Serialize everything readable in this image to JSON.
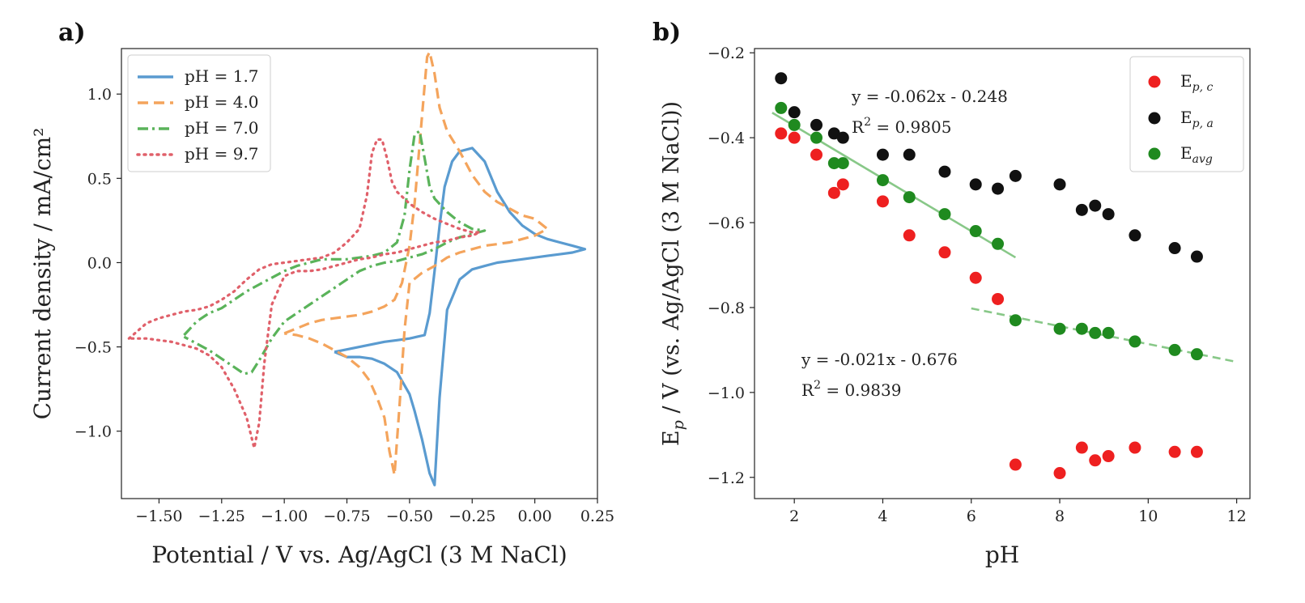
{
  "chart_data": [
    {
      "panel": "a)",
      "type": "line",
      "title": "",
      "xlabel": "Potential / V vs. Ag/AgCl (3 M NaCl)",
      "ylabel": "Current density / mA/cm²",
      "xlim": [
        -1.65,
        0.25
      ],
      "ylim": [
        -1.4,
        1.27
      ],
      "xticks": [
        -1.5,
        -1.25,
        -1.0,
        -0.75,
        -0.5,
        -0.25,
        0.0,
        0.25
      ],
      "xtick_labels": [
        "−1.50",
        "−1.25",
        "−1.00",
        "−0.75",
        "−0.50",
        "−0.25",
        "0.00",
        "0.25"
      ],
      "yticks": [
        -1.0,
        -0.5,
        0.0,
        0.5,
        1.0
      ],
      "ytick_labels": [
        "−1.0",
        "−0.5",
        "0.0",
        "0.5",
        "1.0"
      ],
      "legend_position": "top-left",
      "series": [
        {
          "name": "pH = 1.7",
          "color": "#5a9bd0",
          "dash": "solid",
          "x": [
            -0.8,
            -0.7,
            -0.6,
            -0.55,
            -0.5,
            -0.47,
            -0.44,
            -0.42,
            -0.4,
            -0.38,
            -0.36,
            -0.33,
            -0.3,
            -0.25,
            -0.2,
            -0.15,
            -0.1,
            -0.05,
            0.0,
            0.05,
            0.1,
            0.15,
            0.2,
            0.15,
            0.1,
            0.05,
            0.0,
            -0.05,
            -0.1,
            -0.15,
            -0.2,
            -0.25,
            -0.3,
            -0.35,
            -0.38,
            -0.4,
            -0.42,
            -0.45,
            -0.48,
            -0.5,
            -0.55,
            -0.6,
            -0.65,
            -0.7,
            -0.75,
            -0.8
          ],
          "y": [
            -0.53,
            -0.5,
            -0.47,
            -0.46,
            -0.45,
            -0.44,
            -0.43,
            -0.3,
            -0.05,
            0.22,
            0.45,
            0.6,
            0.66,
            0.68,
            0.6,
            0.42,
            0.3,
            0.22,
            0.17,
            0.14,
            0.12,
            0.1,
            0.08,
            0.06,
            0.05,
            0.04,
            0.03,
            0.02,
            0.01,
            0.0,
            -0.02,
            -0.04,
            -0.1,
            -0.28,
            -0.8,
            -1.32,
            -1.25,
            -1.05,
            -0.88,
            -0.78,
            -0.65,
            -0.6,
            -0.57,
            -0.56,
            -0.56,
            -0.53
          ]
        },
        {
          "name": "pH = 4.0",
          "color": "#f4a45c",
          "dash": "dashed",
          "x": [
            -1.0,
            -0.95,
            -0.9,
            -0.85,
            -0.8,
            -0.75,
            -0.7,
            -0.65,
            -0.6,
            -0.56,
            -0.53,
            -0.5,
            -0.48,
            -0.46,
            -0.44,
            -0.43,
            -0.42,
            -0.4,
            -0.38,
            -0.35,
            -0.3,
            -0.25,
            -0.2,
            -0.15,
            -0.1,
            -0.05,
            0.0,
            0.05,
            0.0,
            -0.05,
            -0.1,
            -0.15,
            -0.2,
            -0.25,
            -0.3,
            -0.35,
            -0.4,
            -0.45,
            -0.5,
            -0.52,
            -0.54,
            -0.56,
            -0.58,
            -0.6,
            -0.63,
            -0.66,
            -0.7,
            -0.75,
            -0.8,
            -0.85,
            -0.9,
            -0.95,
            -1.0
          ],
          "y": [
            -0.42,
            -0.39,
            -0.36,
            -0.34,
            -0.33,
            -0.32,
            -0.31,
            -0.29,
            -0.26,
            -0.22,
            -0.12,
            0.1,
            0.35,
            0.7,
            1.05,
            1.22,
            1.25,
            1.12,
            0.92,
            0.78,
            0.66,
            0.52,
            0.42,
            0.36,
            0.32,
            0.28,
            0.26,
            0.2,
            0.16,
            0.14,
            0.12,
            0.11,
            0.1,
            0.08,
            0.06,
            0.03,
            -0.02,
            -0.06,
            -0.12,
            -0.4,
            -0.85,
            -1.26,
            -1.12,
            -0.92,
            -0.8,
            -0.7,
            -0.62,
            -0.56,
            -0.52,
            -0.48,
            -0.45,
            -0.43,
            -0.42
          ]
        },
        {
          "name": "pH = 7.0",
          "color": "#5ab35a",
          "dash": "dashdot",
          "x": [
            -1.4,
            -1.35,
            -1.3,
            -1.25,
            -1.2,
            -1.15,
            -1.1,
            -1.05,
            -1.0,
            -0.95,
            -0.9,
            -0.85,
            -0.8,
            -0.75,
            -0.7,
            -0.65,
            -0.6,
            -0.55,
            -0.52,
            -0.5,
            -0.48,
            -0.46,
            -0.44,
            -0.42,
            -0.4,
            -0.35,
            -0.3,
            -0.25,
            -0.2,
            -0.25,
            -0.3,
            -0.35,
            -0.4,
            -0.45,
            -0.5,
            -0.55,
            -0.6,
            -0.65,
            -0.7,
            -0.75,
            -0.8,
            -0.85,
            -0.9,
            -0.95,
            -1.0,
            -1.05,
            -1.1,
            -1.13,
            -1.16,
            -1.2,
            -1.25,
            -1.3,
            -1.35,
            -1.4
          ],
          "y": [
            -0.43,
            -0.35,
            -0.3,
            -0.27,
            -0.22,
            -0.17,
            -0.13,
            -0.09,
            -0.05,
            -0.02,
            0.0,
            0.02,
            0.02,
            0.02,
            0.03,
            0.04,
            0.06,
            0.12,
            0.28,
            0.55,
            0.76,
            0.78,
            0.62,
            0.45,
            0.38,
            0.3,
            0.24,
            0.2,
            0.19,
            0.17,
            0.15,
            0.12,
            0.08,
            0.05,
            0.03,
            0.01,
            0.0,
            -0.02,
            -0.05,
            -0.1,
            -0.15,
            -0.2,
            -0.25,
            -0.3,
            -0.35,
            -0.45,
            -0.58,
            -0.65,
            -0.66,
            -0.62,
            -0.57,
            -0.52,
            -0.48,
            -0.44
          ]
        },
        {
          "name": "pH = 9.7",
          "color": "#e0606a",
          "dash": "dotted",
          "x": [
            -1.62,
            -1.55,
            -1.5,
            -1.45,
            -1.4,
            -1.35,
            -1.3,
            -1.25,
            -1.2,
            -1.15,
            -1.1,
            -1.05,
            -1.0,
            -0.95,
            -0.9,
            -0.85,
            -0.8,
            -0.75,
            -0.7,
            -0.67,
            -0.65,
            -0.63,
            -0.61,
            -0.59,
            -0.57,
            -0.55,
            -0.5,
            -0.45,
            -0.4,
            -0.35,
            -0.3,
            -0.25,
            -0.22,
            -0.25,
            -0.3,
            -0.35,
            -0.4,
            -0.45,
            -0.5,
            -0.55,
            -0.6,
            -0.65,
            -0.7,
            -0.75,
            -0.8,
            -0.85,
            -0.9,
            -0.95,
            -1.0,
            -1.05,
            -1.08,
            -1.1,
            -1.12,
            -1.15,
            -1.2,
            -1.25,
            -1.3,
            -1.35,
            -1.4,
            -1.45,
            -1.5,
            -1.55,
            -1.62
          ],
          "y": [
            -0.45,
            -0.36,
            -0.33,
            -0.31,
            -0.29,
            -0.28,
            -0.26,
            -0.22,
            -0.17,
            -0.1,
            -0.04,
            -0.01,
            0.0,
            0.01,
            0.02,
            0.03,
            0.06,
            0.12,
            0.2,
            0.4,
            0.65,
            0.73,
            0.73,
            0.62,
            0.48,
            0.42,
            0.35,
            0.3,
            0.26,
            0.23,
            0.2,
            0.18,
            0.18,
            0.16,
            0.15,
            0.13,
            0.12,
            0.1,
            0.08,
            0.06,
            0.05,
            0.03,
            0.02,
            0.0,
            -0.02,
            -0.04,
            -0.05,
            -0.05,
            -0.08,
            -0.25,
            -0.6,
            -0.95,
            -1.1,
            -0.92,
            -0.75,
            -0.62,
            -0.55,
            -0.51,
            -0.49,
            -0.47,
            -0.46,
            -0.45,
            -0.45
          ]
        }
      ]
    },
    {
      "panel": "b)",
      "type": "scatter",
      "title": "",
      "xlabel": "pH",
      "ylabel": "E_p / V (vs. Ag/AgCl (3 M NaCl))",
      "ylabel_parts": [
        "E",
        "p",
        " / V (vs. Ag/AgCl (3 M NaCl))"
      ],
      "xlim": [
        1.1,
        12.3
      ],
      "ylim": [
        -1.25,
        -0.19
      ],
      "xticks": [
        2,
        4,
        6,
        8,
        10,
        12
      ],
      "xtick_labels": [
        "2",
        "4",
        "6",
        "8",
        "10",
        "12"
      ],
      "yticks": [
        -1.2,
        -1.0,
        -0.8,
        -0.6,
        -0.4,
        -0.2
      ],
      "ytick_labels": [
        "−1.2",
        "−1.0",
        "−0.8",
        "−0.6",
        "−0.4",
        "−0.2"
      ],
      "legend_position": "top-right",
      "series": [
        {
          "name": "Ep,c",
          "label_parts": [
            "E",
            "p, c"
          ],
          "color": "#ee2020",
          "x": [
            1.7,
            2.0,
            2.5,
            2.9,
            3.1,
            4.0,
            4.6,
            5.4,
            6.1,
            6.6,
            7.0,
            8.0,
            8.5,
            8.8,
            9.1,
            9.7,
            10.6,
            11.1
          ],
          "y": [
            -0.39,
            -0.4,
            -0.44,
            -0.53,
            -0.51,
            -0.55,
            -0.63,
            -0.67,
            -0.73,
            -0.78,
            -1.17,
            -1.19,
            -1.13,
            -1.16,
            -1.15,
            -1.13,
            -1.14,
            -1.14
          ]
        },
        {
          "name": "Ep,a",
          "label_parts": [
            "E",
            "p, a"
          ],
          "color": "#111111",
          "x": [
            1.7,
            2.0,
            2.5,
            2.9,
            3.1,
            4.0,
            4.6,
            5.4,
            6.1,
            6.6,
            7.0,
            8.0,
            8.5,
            8.8,
            9.1,
            9.7,
            10.6,
            11.1
          ],
          "y": [
            -0.26,
            -0.34,
            -0.37,
            -0.39,
            -0.4,
            -0.44,
            -0.44,
            -0.48,
            -0.51,
            -0.52,
            -0.49,
            -0.51,
            -0.57,
            -0.56,
            -0.58,
            -0.63,
            -0.66,
            -0.68
          ]
        },
        {
          "name": "Eavg",
          "label_parts": [
            "E",
            "avg"
          ],
          "color": "#1f8a1f",
          "x": [
            1.7,
            2.0,
            2.5,
            2.9,
            3.1,
            4.0,
            4.6,
            5.4,
            6.1,
            6.6,
            7.0,
            8.0,
            8.5,
            8.8,
            9.1,
            9.7,
            10.6,
            11.1
          ],
          "y": [
            -0.33,
            -0.37,
            -0.4,
            -0.46,
            -0.46,
            -0.5,
            -0.54,
            -0.58,
            -0.62,
            -0.65,
            -0.83,
            -0.85,
            -0.85,
            -0.86,
            -0.86,
            -0.88,
            -0.9,
            -0.91
          ]
        }
      ],
      "fits": [
        {
          "equation": "y = -0.062x - 0.248",
          "r2_label": "R",
          "r2_sup": "2",
          "r2_value": " = 0.9805",
          "slope": -0.062,
          "intercept": -0.248,
          "x_range": [
            1.5,
            7.0
          ],
          "style": "solid",
          "color": "#88c888"
        },
        {
          "equation": "y = -0.021x - 0.676",
          "r2_label": "R",
          "r2_sup": "2",
          "r2_value": " = 0.9839",
          "slope": -0.021,
          "intercept": -0.676,
          "x_range": [
            6.0,
            12.0
          ],
          "style": "dashed",
          "color": "#88c888"
        }
      ]
    }
  ]
}
